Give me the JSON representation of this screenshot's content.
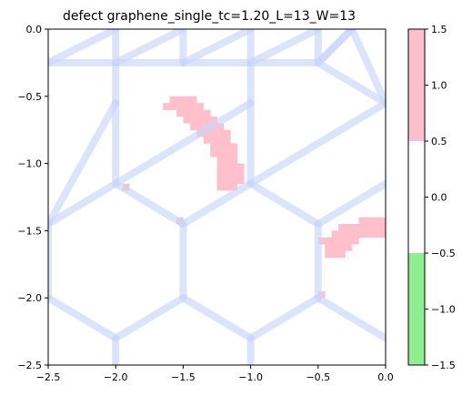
{
  "chart_data": {
    "type": "heatmap",
    "title": "defect graphene_single_tc=1.20_L=13_W=13",
    "xlabel": "",
    "ylabel": "",
    "xlim": [
      -2.5,
      0.0
    ],
    "ylim": [
      -2.5,
      0.0
    ],
    "xticks": [
      "−2.5",
      "−2.0",
      "−1.5",
      "−1.0",
      "−0.5",
      "0.0"
    ],
    "xtick_values": [
      -2.5,
      -2.0,
      -1.5,
      -1.0,
      -0.5,
      0.0
    ],
    "yticks": [
      "0.0",
      "−0.5",
      "−1.0",
      "−1.5",
      "−2.0",
      "−2.5"
    ],
    "ytick_values": [
      0.0,
      -0.5,
      -1.0,
      -1.5,
      -2.0,
      -2.5
    ],
    "grid": false,
    "colorbar": {
      "range": [
        -1.5,
        1.5
      ],
      "ticks": [
        "1.5",
        "1.0",
        "0.5",
        "0.0",
        "−0.5",
        "−1.0",
        "−1.5"
      ],
      "tick_values": [
        1.5,
        1.0,
        0.5,
        0.0,
        -0.5,
        -1.0,
        -1.5
      ],
      "bands": [
        {
          "from": -1.5,
          "to": -0.5,
          "value": -1,
          "color": "#90ee90"
        },
        {
          "from": -0.5,
          "to": 0.5,
          "value": 0,
          "color": "#ffffff"
        },
        {
          "from": 0.5,
          "to": 1.5,
          "value": 1,
          "color": "#ffc0cb"
        }
      ]
    },
    "cell_size": 0.05,
    "value_one_cells": [
      [
        -1.6,
        -0.5
      ],
      [
        -1.55,
        -0.5
      ],
      [
        -1.5,
        -0.5
      ],
      [
        -1.45,
        -0.5
      ],
      [
        -1.65,
        -0.55
      ],
      [
        -1.6,
        -0.55
      ],
      [
        -1.55,
        -0.55
      ],
      [
        -1.5,
        -0.55
      ],
      [
        -1.45,
        -0.55
      ],
      [
        -1.4,
        -0.55
      ],
      [
        -1.55,
        -0.6
      ],
      [
        -1.5,
        -0.6
      ],
      [
        -1.45,
        -0.6
      ],
      [
        -1.4,
        -0.6
      ],
      [
        -1.35,
        -0.6
      ],
      [
        -1.5,
        -0.65
      ],
      [
        -1.45,
        -0.65
      ],
      [
        -1.4,
        -0.65
      ],
      [
        -1.35,
        -0.65
      ],
      [
        -1.3,
        -0.65
      ],
      [
        -1.45,
        -0.7
      ],
      [
        -1.4,
        -0.7
      ],
      [
        -1.35,
        -0.7
      ],
      [
        -1.3,
        -0.7
      ],
      [
        -1.25,
        -0.7
      ],
      [
        -1.4,
        -0.75
      ],
      [
        -1.35,
        -0.75
      ],
      [
        -1.3,
        -0.75
      ],
      [
        -1.25,
        -0.75
      ],
      [
        -1.2,
        -0.75
      ],
      [
        -1.35,
        -0.8
      ],
      [
        -1.3,
        -0.8
      ],
      [
        -1.25,
        -0.8
      ],
      [
        -1.2,
        -0.8
      ],
      [
        -1.3,
        -0.85
      ],
      [
        -1.25,
        -0.85
      ],
      [
        -1.2,
        -0.85
      ],
      [
        -1.15,
        -0.85
      ],
      [
        -1.3,
        -0.9
      ],
      [
        -1.25,
        -0.9
      ],
      [
        -1.2,
        -0.9
      ],
      [
        -1.15,
        -0.9
      ],
      [
        -1.25,
        -0.95
      ],
      [
        -1.2,
        -0.95
      ],
      [
        -1.15,
        -0.95
      ],
      [
        -1.25,
        -1.0
      ],
      [
        -1.2,
        -1.0
      ],
      [
        -1.15,
        -1.0
      ],
      [
        -1.1,
        -1.0
      ],
      [
        -1.25,
        -1.05
      ],
      [
        -1.2,
        -1.05
      ],
      [
        -1.15,
        -1.05
      ],
      [
        -1.1,
        -1.05
      ],
      [
        -1.25,
        -1.1
      ],
      [
        -1.2,
        -1.1
      ],
      [
        -1.15,
        -1.1
      ],
      [
        -1.1,
        -1.1
      ],
      [
        -1.25,
        -1.15
      ],
      [
        -1.2,
        -1.15
      ],
      [
        -1.15,
        -1.15
      ],
      [
        -1.95,
        -1.15
      ],
      [
        -1.55,
        -1.4
      ],
      [
        -0.2,
        -1.4
      ],
      [
        -0.15,
        -1.4
      ],
      [
        -0.1,
        -1.4
      ],
      [
        -0.05,
        -1.4
      ],
      [
        -0.35,
        -1.45
      ],
      [
        -0.3,
        -1.45
      ],
      [
        -0.25,
        -1.45
      ],
      [
        -0.2,
        -1.45
      ],
      [
        -0.15,
        -1.45
      ],
      [
        -0.1,
        -1.45
      ],
      [
        -0.05,
        -1.45
      ],
      [
        -0.4,
        -1.5
      ],
      [
        -0.35,
        -1.5
      ],
      [
        -0.3,
        -1.5
      ],
      [
        -0.25,
        -1.5
      ],
      [
        -0.2,
        -1.5
      ],
      [
        -0.15,
        -1.5
      ],
      [
        -0.1,
        -1.5
      ],
      [
        -0.05,
        -1.5
      ],
      [
        -0.5,
        -1.55
      ],
      [
        -0.45,
        -1.55
      ],
      [
        -0.4,
        -1.55
      ],
      [
        -0.35,
        -1.55
      ],
      [
        -0.3,
        -1.55
      ],
      [
        -0.25,
        -1.55
      ],
      [
        -0.45,
        -1.6
      ],
      [
        -0.4,
        -1.6
      ],
      [
        -0.35,
        -1.6
      ],
      [
        -0.3,
        -1.6
      ],
      [
        -0.45,
        -1.65
      ],
      [
        -0.4,
        -1.65
      ],
      [
        -0.35,
        -1.65
      ],
      [
        -0.5,
        -1.95
      ]
    ],
    "overlay": {
      "description_color": "#c9d6fa",
      "vertices": [
        [
          -2.5,
          -0.25
        ],
        [
          -2.0,
          0.0
        ],
        [
          -2.0,
          -0.25
        ],
        [
          -1.5,
          0.0
        ],
        [
          -1.5,
          -0.25
        ],
        [
          -1.0,
          0.0
        ],
        [
          -1.0,
          -0.25
        ],
        [
          -0.5,
          0.0
        ],
        [
          -0.5,
          -0.25
        ],
        [
          -0.25,
          0.0
        ],
        [
          -2.0,
          -0.55
        ],
        [
          -1.0,
          -0.55
        ],
        [
          0.0,
          -0.55
        ],
        [
          -2.5,
          -1.45
        ],
        [
          -2.0,
          -1.15
        ],
        [
          -1.5,
          -1.45
        ],
        [
          -1.0,
          -1.15
        ],
        [
          -0.5,
          -1.45
        ],
        [
          0.0,
          -1.15
        ],
        [
          -2.5,
          -2.0
        ],
        [
          -2.0,
          -2.3
        ],
        [
          -1.5,
          -2.0
        ],
        [
          -1.0,
          -2.3
        ],
        [
          -0.5,
          -2.0
        ],
        [
          0.0,
          -2.3
        ],
        [
          -2.0,
          -2.5
        ],
        [
          -1.0,
          -2.5
        ]
      ],
      "edges": [
        [
          0,
          1
        ],
        [
          1,
          2
        ],
        [
          0,
          2
        ],
        [
          2,
          3
        ],
        [
          3,
          4
        ],
        [
          4,
          5
        ],
        [
          5,
          6
        ],
        [
          6,
          7
        ],
        [
          7,
          8
        ],
        [
          8,
          9
        ],
        [
          2,
          4
        ],
        [
          4,
          6
        ],
        [
          6,
          8
        ],
        [
          8,
          9
        ],
        [
          2,
          10
        ],
        [
          6,
          11
        ],
        [
          8,
          12
        ],
        [
          9,
          12
        ],
        [
          10,
          13
        ],
        [
          10,
          14
        ],
        [
          11,
          14
        ],
        [
          11,
          16
        ],
        [
          12,
          16
        ],
        [
          13,
          14
        ],
        [
          14,
          15
        ],
        [
          15,
          16
        ],
        [
          16,
          17
        ],
        [
          17,
          18
        ],
        [
          13,
          19
        ],
        [
          15,
          21
        ],
        [
          17,
          23
        ],
        [
          19,
          20
        ],
        [
          20,
          21
        ],
        [
          21,
          22
        ],
        [
          22,
          23
        ],
        [
          23,
          24
        ],
        [
          20,
          25
        ],
        [
          22,
          26
        ]
      ]
    }
  }
}
